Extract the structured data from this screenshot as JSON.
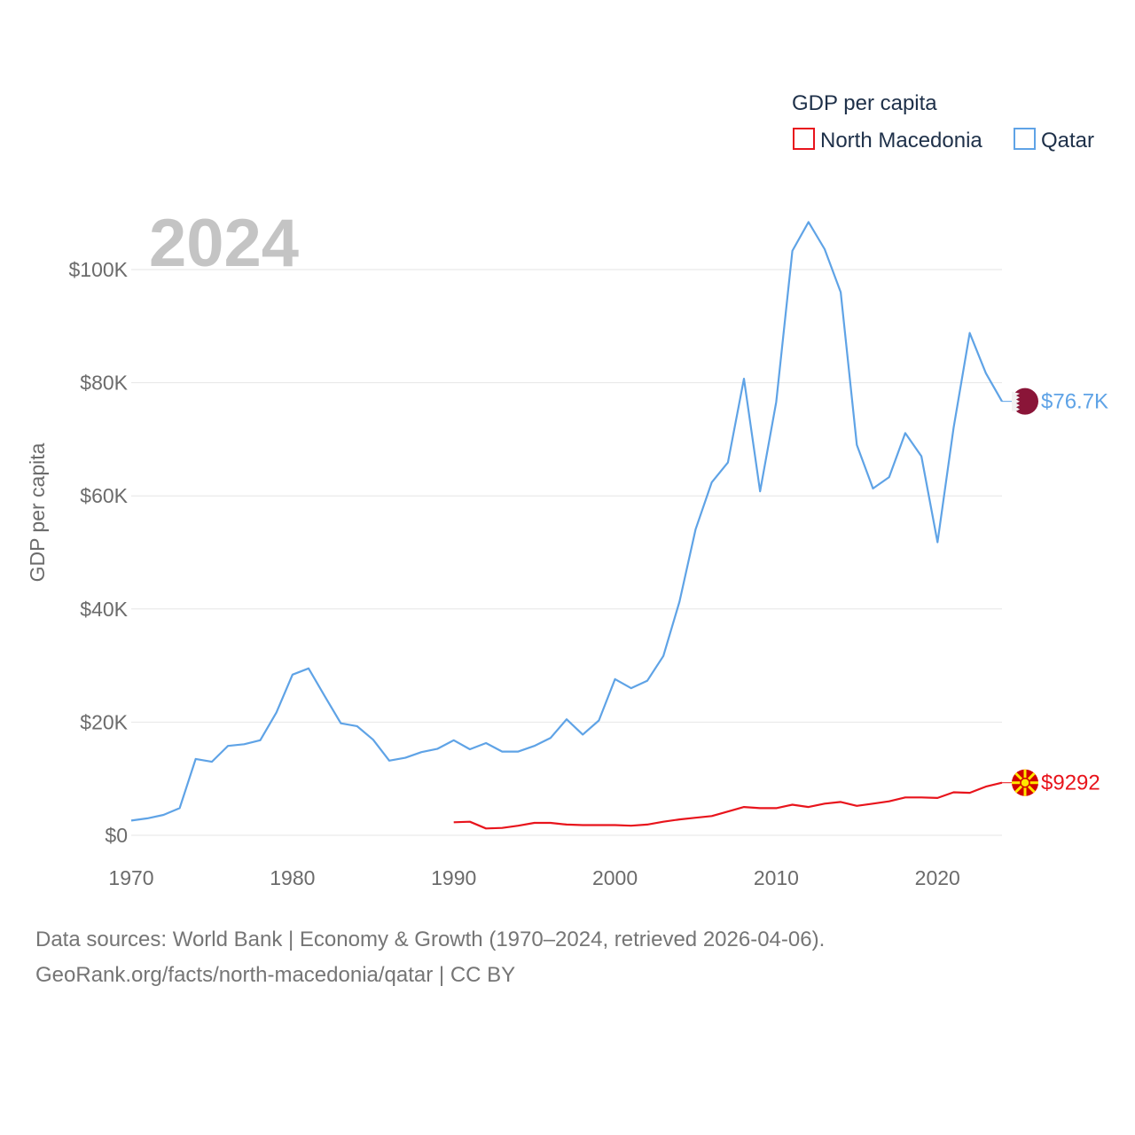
{
  "chart_data": {
    "type": "line",
    "title": "GDP per capita",
    "highlight_year": "2024",
    "ylabel": "GDP per capita",
    "xlabel": "",
    "xlim": [
      1970,
      2024
    ],
    "ylim": [
      0,
      110000
    ],
    "x_ticks": [
      1970,
      1980,
      1990,
      2000,
      2010,
      2020
    ],
    "y_ticks": [
      {
        "value": 0,
        "label": "$0"
      },
      {
        "value": 20000,
        "label": "$20K"
      },
      {
        "value": 40000,
        "label": "$40K"
      },
      {
        "value": 60000,
        "label": "$60K"
      },
      {
        "value": 80000,
        "label": "$80K"
      },
      {
        "value": 100000,
        "label": "$100K"
      }
    ],
    "grid": true,
    "legend_position": "top-right",
    "series": [
      {
        "name": "North Macedonia",
        "color": "#e8141c",
        "end_label": "$9292",
        "flag": "north-macedonia-flag",
        "x": [
          1990,
          1991,
          1992,
          1993,
          1994,
          1995,
          1996,
          1997,
          1998,
          1999,
          2000,
          2001,
          2002,
          2003,
          2004,
          2005,
          2006,
          2007,
          2008,
          2009,
          2010,
          2011,
          2012,
          2013,
          2014,
          2015,
          2016,
          2017,
          2018,
          2019,
          2020,
          2021,
          2022,
          2023,
          2024
        ],
        "values": [
          2300,
          2400,
          1200,
          1300,
          1700,
          2200,
          2200,
          1900,
          1800,
          1800,
          1800,
          1700,
          1900,
          2400,
          2800,
          3100,
          3400,
          4200,
          5000,
          4800,
          4800,
          5400,
          5000,
          5600,
          5900,
          5200,
          5600,
          6000,
          6700,
          6700,
          6600,
          7600,
          7500,
          8600,
          9292
        ]
      },
      {
        "name": "Qatar",
        "color": "#5fa3e6",
        "end_label": "$76.7K",
        "flag": "qatar-flag",
        "x": [
          1970,
          1971,
          1972,
          1973,
          1974,
          1975,
          1976,
          1977,
          1978,
          1979,
          1980,
          1981,
          1982,
          1983,
          1984,
          1985,
          1986,
          1987,
          1988,
          1989,
          1990,
          1991,
          1992,
          1993,
          1994,
          1995,
          1996,
          1997,
          1998,
          1999,
          2000,
          2001,
          2002,
          2003,
          2004,
          2005,
          2006,
          2007,
          2008,
          2009,
          2010,
          2011,
          2012,
          2013,
          2014,
          2015,
          2016,
          2017,
          2018,
          2019,
          2020,
          2021,
          2022,
          2023,
          2024
        ],
        "values": [
          2600,
          3000,
          3600,
          4800,
          13500,
          13000,
          15800,
          16100,
          16800,
          21700,
          28400,
          29500,
          24600,
          19800,
          19300,
          16900,
          13200,
          13700,
          14700,
          15300,
          16800,
          15200,
          16300,
          14800,
          14800,
          15800,
          17200,
          20500,
          17800,
          20300,
          27600,
          26000,
          27300,
          31700,
          41300,
          54100,
          62400,
          65900,
          80700,
          60800,
          76600,
          103300,
          108400,
          103600,
          96000,
          69000,
          61300,
          63300,
          71100,
          67000,
          51800,
          72000,
          88800,
          81700,
          76700
        ]
      }
    ]
  },
  "footer": {
    "line1": "Data sources: World Bank | Economy & Growth (1970–2024, retrieved 2026-04-06).",
    "line2": "GeoRank.org/facts/north-macedonia/qatar | CC BY"
  }
}
